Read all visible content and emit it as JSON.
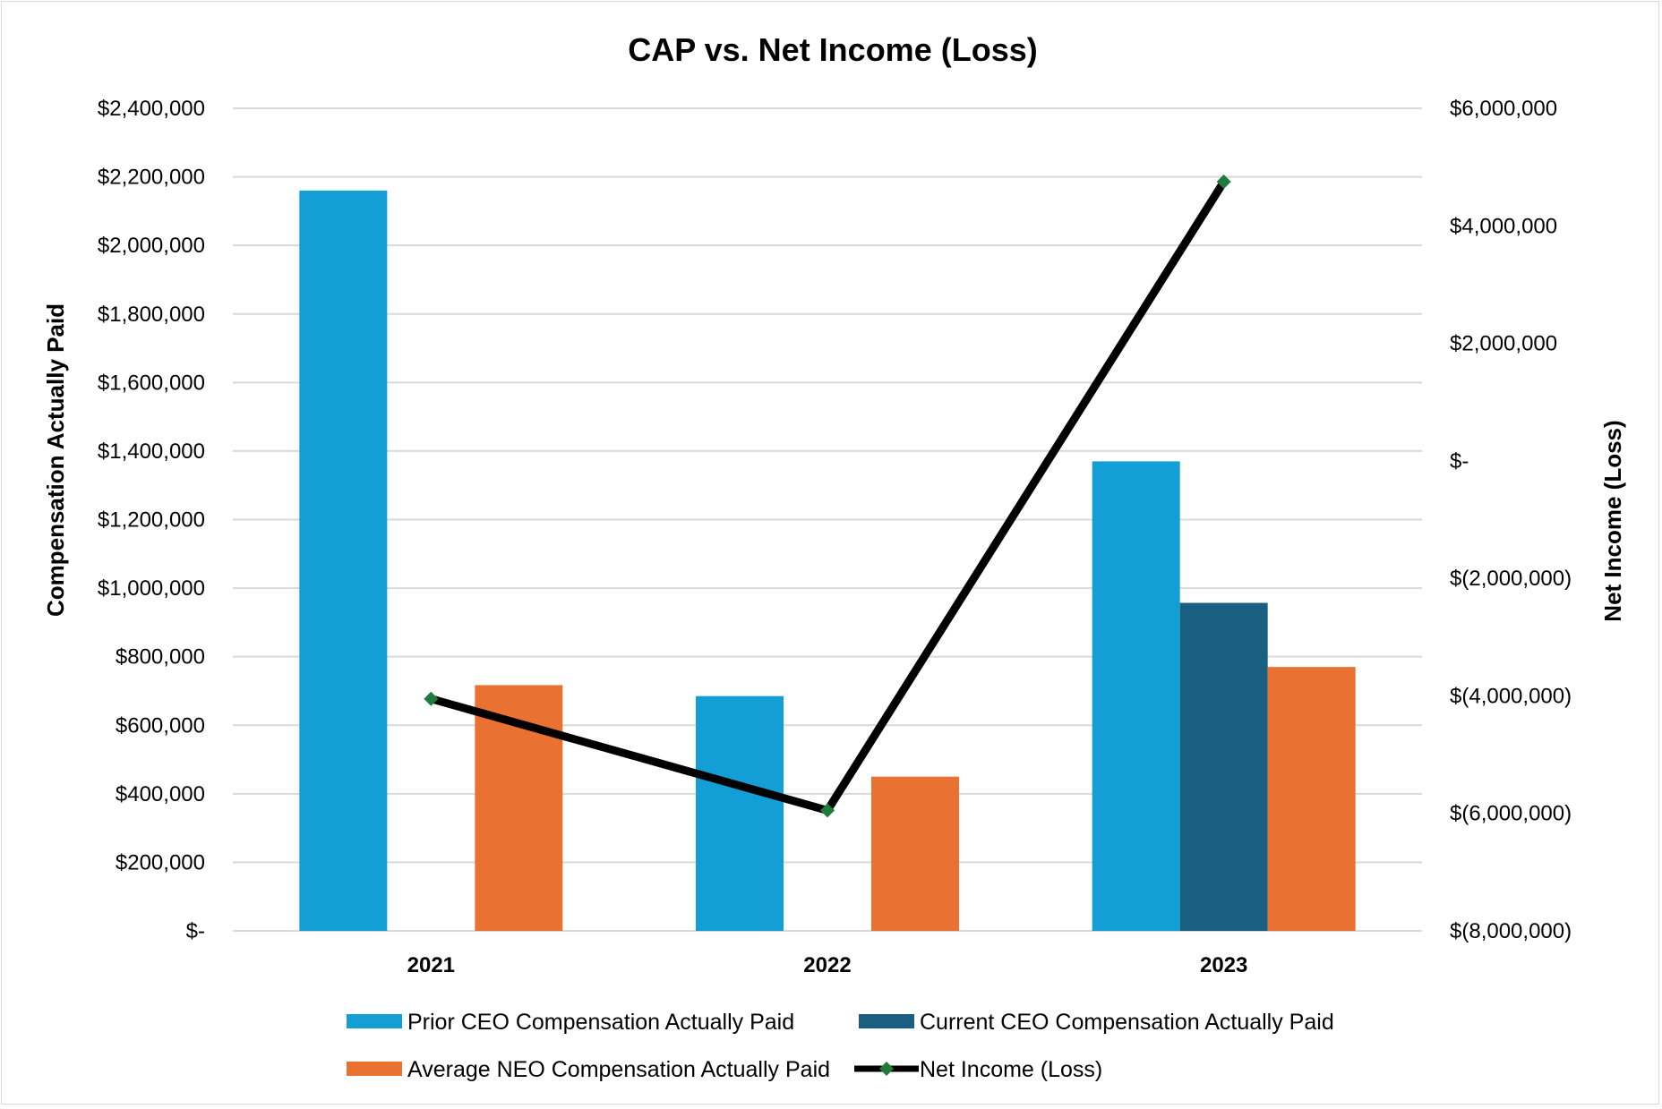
{
  "chart_data": {
    "type": "bar",
    "title": "CAP vs. Net Income (Loss)",
    "categories": [
      "2021",
      "2022",
      "2023"
    ],
    "ylabel": "Compensation Actually Paid",
    "y2label": "Net Income (Loss)",
    "ylim": [
      0,
      2400000
    ],
    "y2lim": [
      -8000000,
      6000000
    ],
    "yticks": [
      {
        "value": 0,
        "label": "$-"
      },
      {
        "value": 200000,
        "label": "$200,000"
      },
      {
        "value": 400000,
        "label": "$400,000"
      },
      {
        "value": 600000,
        "label": "$600,000"
      },
      {
        "value": 800000,
        "label": "$800,000"
      },
      {
        "value": 1000000,
        "label": "$1,000,000"
      },
      {
        "value": 1200000,
        "label": "$1,200,000"
      },
      {
        "value": 1400000,
        "label": "$1,400,000"
      },
      {
        "value": 1600000,
        "label": "$1,600,000"
      },
      {
        "value": 1800000,
        "label": "$1,800,000"
      },
      {
        "value": 2000000,
        "label": "$2,000,000"
      },
      {
        "value": 2200000,
        "label": "$2,200,000"
      },
      {
        "value": 2400000,
        "label": "$2,400,000"
      }
    ],
    "y2ticks": [
      {
        "value": -8000000,
        "label": "$(8,000,000)"
      },
      {
        "value": -6000000,
        "label": "$(6,000,000)"
      },
      {
        "value": -4000000,
        "label": "$(4,000,000)"
      },
      {
        "value": -2000000,
        "label": "$(2,000,000)"
      },
      {
        "value": 0,
        "label": "$-"
      },
      {
        "value": 2000000,
        "label": "$2,000,000"
      },
      {
        "value": 4000000,
        "label": "$4,000,000"
      },
      {
        "value": 6000000,
        "label": "$6,000,000"
      }
    ],
    "bar_series": [
      {
        "name": "Prior CEO Compensation Actually Paid",
        "color": "#149ED6",
        "values": [
          2160000,
          685000,
          1370000
        ]
      },
      {
        "name": "Current CEO Compensation Actually Paid",
        "color": "#195F82",
        "values": [
          null,
          null,
          957000
        ]
      },
      {
        "name": "Average NEO Compensation Actually Paid",
        "color": "#E97132",
        "values": [
          717000,
          450000,
          770000
        ]
      }
    ],
    "line_series": {
      "name": "Net Income (Loss)",
      "axis": "right",
      "line_color": "#000000",
      "marker_color": "#1E7B3C",
      "values": [
        -4050000,
        -5950000,
        4750000
      ]
    },
    "grid": true,
    "legend_position": "bottom"
  }
}
